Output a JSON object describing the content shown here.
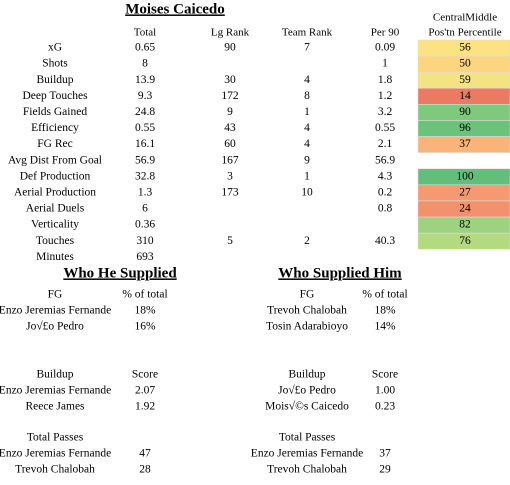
{
  "title": "Moises Caicedo",
  "header": {
    "columns": [
      "Total",
      "Lg Rank",
      "Team Rank",
      "Per 90"
    ],
    "percentile": [
      "CentralMiddle",
      "Pos'tn Percentile"
    ]
  },
  "rows": [
    {
      "cells": [
        "xG",
        "0.65",
        "90",
        "7",
        "0.09"
      ],
      "percentile": "56",
      "color": "#fde282"
    },
    {
      "cells": [
        "Shots",
        "8",
        null,
        null,
        "1"
      ],
      "percentile": "50",
      "color": "#fdd47f"
    },
    {
      "cells": [
        "Buildup",
        "13.9",
        "30",
        "4",
        "1.8"
      ],
      "percentile": "59",
      "color": "#f3e383"
    },
    {
      "cells": [
        "Deep Touches",
        "9.3",
        "172",
        "8",
        "1.2"
      ],
      "percentile": "14",
      "color": "#ec7a62"
    },
    {
      "cells": [
        "Fields Gained",
        "24.8",
        "9",
        "1",
        "3.2"
      ],
      "percentile": "90",
      "color": "#7ec97b"
    },
    {
      "cells": [
        "Efficiency",
        "0.55",
        "43",
        "4",
        "0.55"
      ],
      "percentile": "96",
      "color": "#6bc37b"
    },
    {
      "cells": [
        "FG Rec",
        "16.1",
        "60",
        "4",
        "2.1"
      ],
      "percentile": "37",
      "color": "#f8b479"
    },
    {
      "cells": [
        "Avg Dist From Goal",
        "56.9",
        "167",
        "9",
        "56.9"
      ],
      "percentile": null,
      "color": null
    },
    {
      "cells": [
        "Def Production",
        "32.8",
        "3",
        "1",
        "4.3"
      ],
      "percentile": "100",
      "color": "#63be7b"
    },
    {
      "cells": [
        "Aerial Production",
        "1.3",
        "173",
        "10",
        "0.2"
      ],
      "percentile": "27",
      "color": "#f59a70"
    },
    {
      "cells": [
        "Aerial Duels",
        "6",
        null,
        null,
        "0.8"
      ],
      "percentile": "24",
      "color": "#f3916c"
    },
    {
      "cells": [
        "Verticality",
        "0.36",
        null,
        null,
        null
      ],
      "percentile": "82",
      "color": "#9dd37f"
    },
    {
      "cells": [
        "Touches",
        "310",
        "5",
        "2",
        "40.3"
      ],
      "percentile": "76",
      "color": "#b4da81"
    },
    {
      "cells": [
        "Minutes",
        "693",
        null,
        null,
        null
      ],
      "percentile": null,
      "color": null
    }
  ],
  "supplied": {
    "title": "Who He Supplied",
    "tables": [
      {
        "headers": [
          "FG",
          "% of total"
        ],
        "rows": [
          [
            "Enzo Jeremias Fernande",
            "18%"
          ],
          [
            "Jo√£o Pedro",
            "16%"
          ]
        ]
      },
      {
        "headers": [
          "Buildup",
          "Score"
        ],
        "rows": [
          [
            "Enzo Jeremias Fernande",
            "2.07"
          ],
          [
            "Reece James",
            "1.92"
          ]
        ]
      },
      {
        "headers": [
          "Total Passes"
        ],
        "rows": [
          [
            "Enzo Jeremias Fernande",
            "47"
          ],
          [
            "Trevoh Chalobah",
            "28"
          ]
        ]
      }
    ]
  },
  "supplier": {
    "title": "Who Supplied Him",
    "tables": [
      {
        "headers": [
          "FG",
          "% of total"
        ],
        "rows": [
          [
            "Trevoh Chalobah",
            "18%"
          ],
          [
            "Tosin Adarabioyo",
            "14%"
          ]
        ]
      },
      {
        "headers": [
          "Buildup",
          "Score"
        ],
        "rows": [
          [
            "Jo√£o Pedro",
            "1.00"
          ],
          [
            "Mois√©s Caicedo",
            "0.23"
          ]
        ]
      },
      {
        "headers": [
          "Total Passes"
        ],
        "rows": [
          [
            "Enzo Jeremias Fernande",
            "37"
          ],
          [
            "Trevoh Chalobah",
            "29"
          ]
        ]
      }
    ]
  }
}
